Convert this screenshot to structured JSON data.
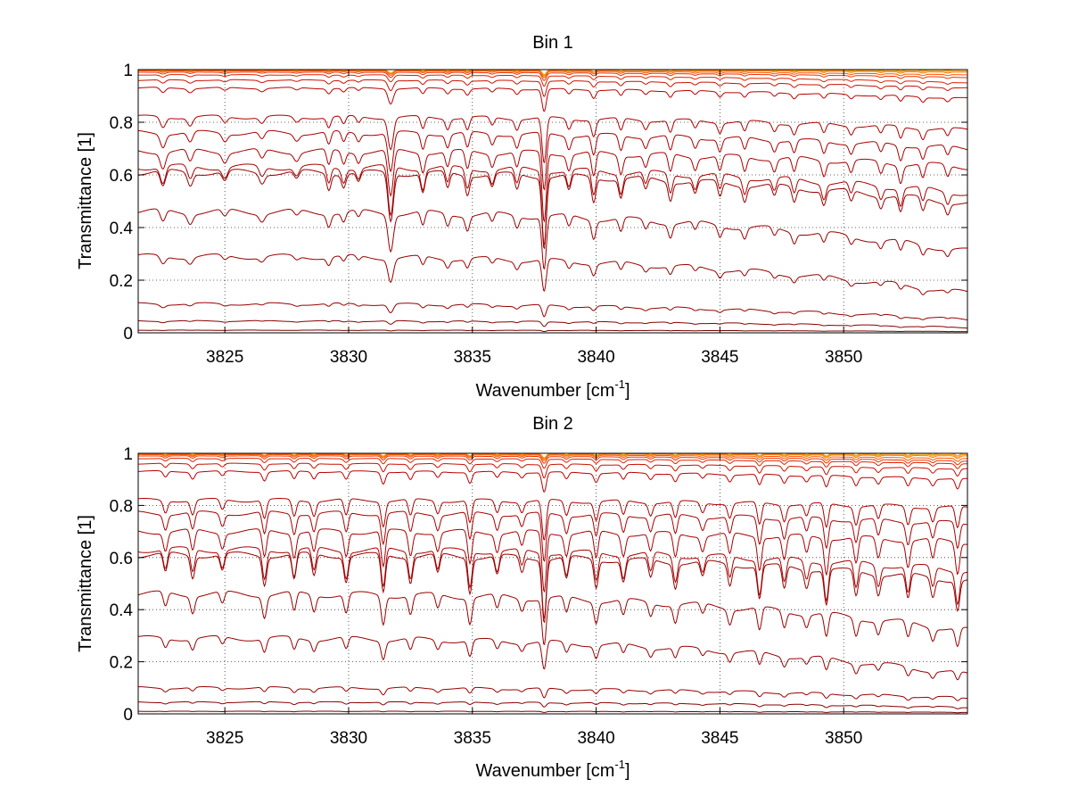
{
  "chart_data": [
    {
      "type": "line",
      "title": "Bin 1",
      "xlabel_main": "Wavenumber [cm",
      "xlabel_sup": "-1",
      "xlabel_tail": "]",
      "ylabel": "Transmittance [1]",
      "xlim": [
        3821.5,
        3855
      ],
      "ylim": [
        0,
        1
      ],
      "xticks": [
        3825,
        3830,
        3835,
        3840,
        3845,
        3850
      ],
      "xtick_labels": [
        "3825",
        "3830",
        "3835",
        "3840",
        "3845",
        "3850"
      ],
      "yticks": [
        0,
        0.2,
        0.4,
        0.6,
        0.8,
        1
      ],
      "ytick_labels": [
        "0",
        "0.2",
        "0.4",
        "0.6",
        "0.8",
        "1"
      ],
      "grid": true,
      "line_features": [
        {
          "x": 3822.5,
          "depth": 0.1,
          "width": 0.15
        },
        {
          "x": 3823.6,
          "depth": 0.08,
          "width": 0.15
        },
        {
          "x": 3825.0,
          "depth": 0.06,
          "width": 0.15
        },
        {
          "x": 3826.5,
          "depth": 0.06,
          "width": 0.15
        },
        {
          "x": 3827.9,
          "depth": 0.05,
          "width": 0.15
        },
        {
          "x": 3829.2,
          "depth": 0.1,
          "width": 0.12
        },
        {
          "x": 3829.8,
          "depth": 0.08,
          "width": 0.12
        },
        {
          "x": 3830.4,
          "depth": 0.06,
          "width": 0.12
        },
        {
          "x": 3831.7,
          "depth": 0.3,
          "width": 0.15
        },
        {
          "x": 3833.0,
          "depth": 0.12,
          "width": 0.12
        },
        {
          "x": 3834.0,
          "depth": 0.1,
          "width": 0.12
        },
        {
          "x": 3834.8,
          "depth": 0.12,
          "width": 0.12
        },
        {
          "x": 3835.8,
          "depth": 0.08,
          "width": 0.12
        },
        {
          "x": 3836.8,
          "depth": 0.1,
          "width": 0.12
        },
        {
          "x": 3837.9,
          "depth": 0.45,
          "width": 0.12
        },
        {
          "x": 3838.9,
          "depth": 0.1,
          "width": 0.12
        },
        {
          "x": 3839.9,
          "depth": 0.16,
          "width": 0.12
        },
        {
          "x": 3841.0,
          "depth": 0.12,
          "width": 0.12
        },
        {
          "x": 3842.0,
          "depth": 0.08,
          "width": 0.12
        },
        {
          "x": 3843.0,
          "depth": 0.12,
          "width": 0.12
        },
        {
          "x": 3844.0,
          "depth": 0.08,
          "width": 0.12
        },
        {
          "x": 3845.0,
          "depth": 0.1,
          "width": 0.12
        },
        {
          "x": 3846.0,
          "depth": 0.1,
          "width": 0.12
        },
        {
          "x": 3847.2,
          "depth": 0.08,
          "width": 0.12
        },
        {
          "x": 3848.0,
          "depth": 0.1,
          "width": 0.12
        },
        {
          "x": 3849.2,
          "depth": 0.1,
          "width": 0.12
        },
        {
          "x": 3850.3,
          "depth": 0.08,
          "width": 0.12
        },
        {
          "x": 3851.5,
          "depth": 0.08,
          "width": 0.12
        },
        {
          "x": 3852.3,
          "depth": 0.12,
          "width": 0.12
        },
        {
          "x": 3853.2,
          "depth": 0.1,
          "width": 0.12
        },
        {
          "x": 3854.2,
          "depth": 0.08,
          "width": 0.12
        }
      ],
      "series": [
        {
          "baseline": 1.0,
          "end": 1.0,
          "color": "#e0a000"
        },
        {
          "baseline": 1.0,
          "end": 0.995,
          "color": "#ff9900"
        },
        {
          "baseline": 0.998,
          "end": 0.99,
          "color": "#ff7700"
        },
        {
          "baseline": 0.995,
          "end": 0.98,
          "color": "#ff5500"
        },
        {
          "baseline": 0.99,
          "end": 0.97,
          "color": "#ee3300"
        },
        {
          "baseline": 0.98,
          "end": 0.95,
          "color": "#dd2200"
        },
        {
          "baseline": 0.96,
          "end": 0.93,
          "color": "#cc1100"
        },
        {
          "baseline": 0.93,
          "end": 0.89,
          "color": "#bb0000"
        },
        {
          "baseline": 0.82,
          "end": 0.77,
          "color": "#aa0000"
        },
        {
          "baseline": 0.76,
          "end": 0.7,
          "color": "#aa0000"
        },
        {
          "baseline": 0.69,
          "end": 0.63,
          "color": "#aa0000"
        },
        {
          "baseline": 0.63,
          "end": 0.53,
          "color": "#aa0000"
        },
        {
          "baseline": 0.61,
          "end": 0.49,
          "color": "#990000"
        },
        {
          "baseline": 0.46,
          "end": 0.31,
          "color": "#990000"
        },
        {
          "baseline": 0.29,
          "end": 0.15,
          "color": "#990000"
        },
        {
          "baseline": 0.11,
          "end": 0.05,
          "color": "#990000"
        },
        {
          "baseline": 0.045,
          "end": 0.02,
          "color": "#880000"
        },
        {
          "baseline": 0.01,
          "end": 0.005,
          "color": "#770000"
        }
      ]
    },
    {
      "type": "line",
      "title": "Bin 2",
      "xlabel_main": "Wavenumber [cm",
      "xlabel_sup": "-1",
      "xlabel_tail": "]",
      "ylabel": "Transmittance [1]",
      "xlim": [
        3821.5,
        3855
      ],
      "ylim": [
        0,
        1
      ],
      "xticks": [
        3825,
        3830,
        3835,
        3840,
        3845,
        3850
      ],
      "xtick_labels": [
        "3825",
        "3830",
        "3835",
        "3840",
        "3845",
        "3850"
      ],
      "yticks": [
        0,
        0.2,
        0.4,
        0.6,
        0.8,
        1
      ],
      "ytick_labels": [
        "0",
        "0.2",
        "0.4",
        "0.6",
        "0.8",
        "1"
      ],
      "grid": true,
      "line_features": [
        {
          "x": 3822.6,
          "depth": 0.12,
          "width": 0.12
        },
        {
          "x": 3823.7,
          "depth": 0.14,
          "width": 0.12
        },
        {
          "x": 3824.9,
          "depth": 0.1,
          "width": 0.12
        },
        {
          "x": 3826.6,
          "depth": 0.18,
          "width": 0.12
        },
        {
          "x": 3827.8,
          "depth": 0.16,
          "width": 0.12
        },
        {
          "x": 3828.6,
          "depth": 0.14,
          "width": 0.12
        },
        {
          "x": 3829.9,
          "depth": 0.16,
          "width": 0.12
        },
        {
          "x": 3831.4,
          "depth": 0.24,
          "width": 0.12
        },
        {
          "x": 3832.5,
          "depth": 0.16,
          "width": 0.12
        },
        {
          "x": 3833.6,
          "depth": 0.12,
          "width": 0.12
        },
        {
          "x": 3834.9,
          "depth": 0.22,
          "width": 0.12
        },
        {
          "x": 3836.0,
          "depth": 0.12,
          "width": 0.12
        },
        {
          "x": 3837.0,
          "depth": 0.1,
          "width": 0.12
        },
        {
          "x": 3837.9,
          "depth": 0.4,
          "width": 0.12
        },
        {
          "x": 3838.8,
          "depth": 0.14,
          "width": 0.12
        },
        {
          "x": 3840.0,
          "depth": 0.18,
          "width": 0.12
        },
        {
          "x": 3841.1,
          "depth": 0.14,
          "width": 0.12
        },
        {
          "x": 3842.2,
          "depth": 0.12,
          "width": 0.12
        },
        {
          "x": 3843.2,
          "depth": 0.16,
          "width": 0.12
        },
        {
          "x": 3844.3,
          "depth": 0.1,
          "width": 0.12
        },
        {
          "x": 3845.4,
          "depth": 0.14,
          "width": 0.12
        },
        {
          "x": 3846.6,
          "depth": 0.22,
          "width": 0.12
        },
        {
          "x": 3847.6,
          "depth": 0.16,
          "width": 0.12
        },
        {
          "x": 3848.5,
          "depth": 0.12,
          "width": 0.12
        },
        {
          "x": 3849.3,
          "depth": 0.24,
          "width": 0.12
        },
        {
          "x": 3850.5,
          "depth": 0.18,
          "width": 0.12
        },
        {
          "x": 3851.4,
          "depth": 0.14,
          "width": 0.12
        },
        {
          "x": 3852.6,
          "depth": 0.18,
          "width": 0.12
        },
        {
          "x": 3853.6,
          "depth": 0.14,
          "width": 0.12
        },
        {
          "x": 3854.6,
          "depth": 0.22,
          "width": 0.12
        }
      ],
      "series": [
        {
          "baseline": 1.0,
          "end": 1.0,
          "color": "#e0a000"
        },
        {
          "baseline": 1.0,
          "end": 0.995,
          "color": "#ff9900"
        },
        {
          "baseline": 0.998,
          "end": 0.99,
          "color": "#ff7700"
        },
        {
          "baseline": 0.995,
          "end": 0.98,
          "color": "#ff5500"
        },
        {
          "baseline": 0.99,
          "end": 0.97,
          "color": "#ee3300"
        },
        {
          "baseline": 0.98,
          "end": 0.96,
          "color": "#dd2200"
        },
        {
          "baseline": 0.96,
          "end": 0.94,
          "color": "#cc1100"
        },
        {
          "baseline": 0.93,
          "end": 0.9,
          "color": "#bb0000"
        },
        {
          "baseline": 0.82,
          "end": 0.79,
          "color": "#aa0000"
        },
        {
          "baseline": 0.77,
          "end": 0.73,
          "color": "#aa0000"
        },
        {
          "baseline": 0.7,
          "end": 0.66,
          "color": "#aa0000"
        },
        {
          "baseline": 0.63,
          "end": 0.55,
          "color": "#aa0000"
        },
        {
          "baseline": 0.61,
          "end": 0.51,
          "color": "#990000"
        },
        {
          "baseline": 0.46,
          "end": 0.32,
          "color": "#990000"
        },
        {
          "baseline": 0.29,
          "end": 0.15,
          "color": "#990000"
        },
        {
          "baseline": 0.1,
          "end": 0.06,
          "color": "#990000"
        },
        {
          "baseline": 0.045,
          "end": 0.025,
          "color": "#880000"
        },
        {
          "baseline": 0.01,
          "end": 0.006,
          "color": "#770000"
        }
      ]
    }
  ]
}
